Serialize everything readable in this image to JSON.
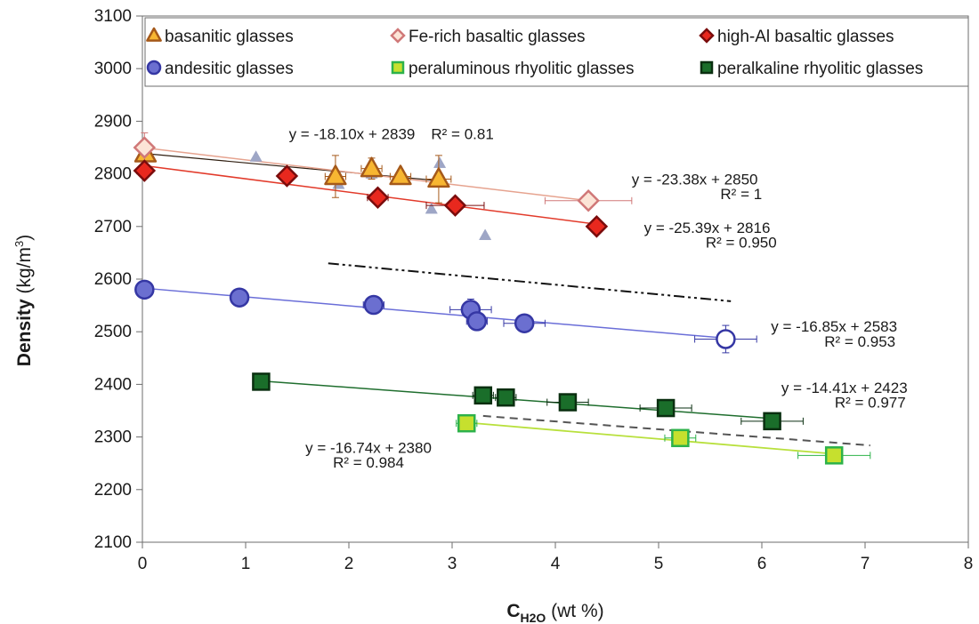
{
  "chart_data": {
    "type": "scatter",
    "xlabel": {
      "main": "C",
      "sub": "H2O",
      "unit": "(wt %)"
    },
    "ylabel": {
      "main": "Density",
      "unit": "(kg/m",
      "sup": "3",
      "close": ")"
    },
    "xlim": [
      0,
      8
    ],
    "ylim": [
      2100,
      3100
    ],
    "xticks": [
      0,
      1,
      2,
      3,
      4,
      5,
      6,
      7,
      8
    ],
    "yticks": [
      2100,
      2200,
      2300,
      2400,
      2500,
      2600,
      2700,
      2800,
      2900,
      3000,
      3100
    ],
    "legend_position": "top",
    "series": [
      {
        "name": "basanitic glasses",
        "marker": "triangle",
        "fill": "#f7b632",
        "stroke": "#a5591a",
        "points": [
          [
            0.03,
            2838
          ],
          [
            1.87,
            2795
          ],
          [
            2.22,
            2810
          ],
          [
            2.5,
            2795
          ],
          [
            2.87,
            2790
          ]
        ],
        "xerr": [
          0.05,
          0.1,
          0.1,
          0.1,
          0.12
        ],
        "yerr": [
          5,
          40,
          20,
          12,
          45
        ]
      },
      {
        "name": "Fe-rich basaltic glasses",
        "marker": "diamond",
        "fill": "#fce4d6",
        "stroke": "#d07878",
        "points": [
          [
            0.02,
            2850
          ],
          [
            4.32,
            2749
          ]
        ],
        "xerr": [
          0.05,
          0.42
        ],
        "yerr": [
          28,
          8
        ]
      },
      {
        "name": "high-Al basaltic glasses",
        "marker": "diamond",
        "fill": "#e8281e",
        "stroke": "#7a0c0c",
        "points": [
          [
            0.02,
            2806
          ],
          [
            1.4,
            2796
          ],
          [
            2.28,
            2755
          ],
          [
            3.03,
            2740
          ],
          [
            4.4,
            2700
          ]
        ],
        "xerr": [
          0.05,
          0.05,
          0.1,
          0.28,
          0.05
        ],
        "yerr": [
          5,
          5,
          5,
          5,
          5
        ]
      },
      {
        "name": "andesitic glasses",
        "marker": "circle",
        "fill": "#6b6fd0",
        "stroke": "#3537a4",
        "points": [
          [
            0.02,
            2580
          ],
          [
            0.94,
            2565
          ],
          [
            2.24,
            2551
          ],
          [
            3.18,
            2542
          ],
          [
            3.24,
            2520
          ],
          [
            3.7,
            2516
          ],
          [
            5.65,
            2486
          ]
        ],
        "xerr": [
          0.02,
          0.02,
          0.1,
          0.2,
          0.1,
          0.2,
          0.3
        ],
        "yerr": [
          5,
          5,
          10,
          20,
          8,
          8,
          26
        ]
      },
      {
        "name": "peraluminous rhyolitic glasses",
        "marker": "square",
        "fill": "#c6e02e",
        "stroke": "#2db24a",
        "points": [
          [
            3.14,
            2326
          ],
          [
            5.21,
            2298
          ],
          [
            6.7,
            2265
          ]
        ],
        "xerr": [
          0.1,
          0.15,
          0.35
        ],
        "yerr": [
          10,
          8,
          16
        ]
      },
      {
        "name": "peralkaline rhyolitic glasses",
        "marker": "square",
        "fill": "#1a6e2a",
        "stroke": "#0a2f10",
        "points": [
          [
            1.15,
            2405
          ],
          [
            3.3,
            2379
          ],
          [
            3.52,
            2375
          ],
          [
            4.12,
            2366
          ],
          [
            5.07,
            2355
          ],
          [
            6.1,
            2330
          ]
        ],
        "xerr": [
          0.02,
          0.1,
          0.1,
          0.2,
          0.25,
          0.3
        ],
        "yerr": [
          5,
          5,
          5,
          5,
          5,
          5
        ]
      }
    ],
    "small_triangles": {
      "fill": "#9ea6c6",
      "points": [
        [
          1.1,
          2832
        ],
        [
          1.9,
          2780
        ],
        [
          2.22,
          2800
        ],
        [
          2.88,
          2820
        ],
        [
          2.8,
          2733
        ],
        [
          3.32,
          2683
        ]
      ]
    },
    "fit_lines": [
      {
        "color": "#2f1e10",
        "width": 1.2,
        "x": [
          0.0,
          2.9
        ],
        "y": [
          2839,
          2786.5
        ]
      },
      {
        "color": "#e6a38f",
        "width": 1.5,
        "x": [
          0.0,
          4.32
        ],
        "y": [
          2850,
          2749
        ]
      },
      {
        "color": "#e23a2a",
        "width": 1.5,
        "x": [
          0.0,
          4.4
        ],
        "y": [
          2816,
          2704.3
        ]
      },
      {
        "color": "#6a6ed8",
        "width": 1.5,
        "x": [
          0.0,
          5.65
        ],
        "y": [
          2583,
          2487.8
        ]
      },
      {
        "color": "#1f6e2e",
        "width": 1.5,
        "x": [
          1.15,
          6.1
        ],
        "y": [
          2406.4,
          2335.1
        ]
      },
      {
        "color": "#b8e03c",
        "width": 1.8,
        "x": [
          3.14,
          6.7
        ],
        "y": [
          2327.4,
          2267.8
        ]
      }
    ],
    "dashed_lines": [
      {
        "pattern": "dashdot",
        "color": "#111111",
        "x": [
          1.8,
          5.7
        ],
        "y": [
          2630,
          2558
        ]
      },
      {
        "pattern": "dash",
        "color": "#555555",
        "x": [
          3.3,
          7.05
        ],
        "y": [
          2340,
          2284
        ]
      }
    ],
    "annotations": [
      {
        "id": "basanite-eq",
        "text": "y = -18.10x + 2839",
        "x": 2.03,
        "y": 2866
      },
      {
        "id": "basanite-r2",
        "text": "R² = 0.81",
        "x": 3.1,
        "y": 2866
      },
      {
        "id": "fe-eq",
        "text": "y = -23.38x + 2850",
        "x": 5.35,
        "y": 2780
      },
      {
        "id": "fe-r2",
        "text": "R² = 1",
        "x": 5.8,
        "y": 2752
      },
      {
        "id": "hial-eq",
        "text": "y = -25.39x + 2816",
        "x": 5.47,
        "y": 2688
      },
      {
        "id": "hial-r2",
        "text": "R² = 0.950",
        "x": 5.8,
        "y": 2660
      },
      {
        "id": "and-eq",
        "text": "y = -16.85x + 2583",
        "x": 6.7,
        "y": 2500
      },
      {
        "id": "and-r2",
        "text": "R² = 0.953",
        "x": 6.95,
        "y": 2472
      },
      {
        "id": "pk-eq",
        "text": "y = -14.41x + 2423",
        "x": 6.8,
        "y": 2384
      },
      {
        "id": "pk-r2",
        "text": "R² = 0.977",
        "x": 7.05,
        "y": 2356
      },
      {
        "id": "pl-eq",
        "text": "y = -16.74x + 2380",
        "x": 2.19,
        "y": 2270
      },
      {
        "id": "pl-r2",
        "text": "R² = 0.984",
        "x": 2.19,
        "y": 2242
      }
    ]
  }
}
